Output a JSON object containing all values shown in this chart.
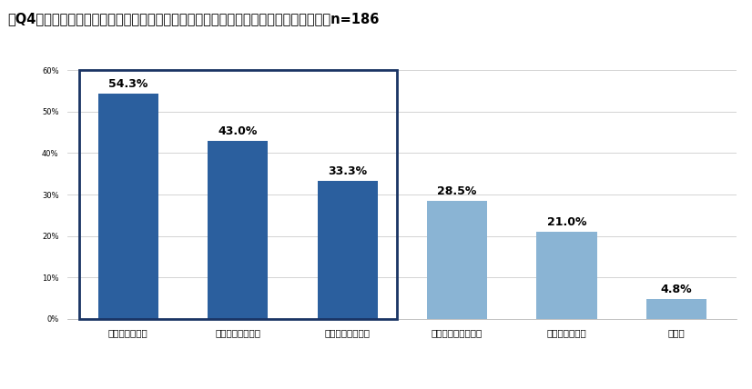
{
  "title": "【Q4】仕事に関する悩みとしてあてはまるものをすべてお選びください。（複数回答）n=186",
  "categories": [
    "疲れが取れない",
    "仕事場の人間関係",
    "集中力が続かない",
    "生産性が上がらない",
    "業務時間が長い",
    "その他"
  ],
  "values": [
    54.3,
    43.0,
    33.3,
    28.5,
    21.0,
    4.8
  ],
  "bar_colors_dark": "#2b5f9e",
  "bar_colors_light": "#8ab4d4",
  "ylim": [
    0,
    60
  ],
  "yticks": [
    0,
    10,
    20,
    30,
    40,
    50,
    60
  ],
  "ytick_labels": [
    "0%",
    "10%",
    "20%",
    "30%",
    "40%",
    "50%",
    "60%"
  ],
  "highlight_box_color": "#1a3464",
  "background_color": "#ffffff",
  "title_fontsize": 10.5,
  "label_fontsize": 7.5,
  "value_fontsize": 9,
  "ytick_fontsize": 6
}
